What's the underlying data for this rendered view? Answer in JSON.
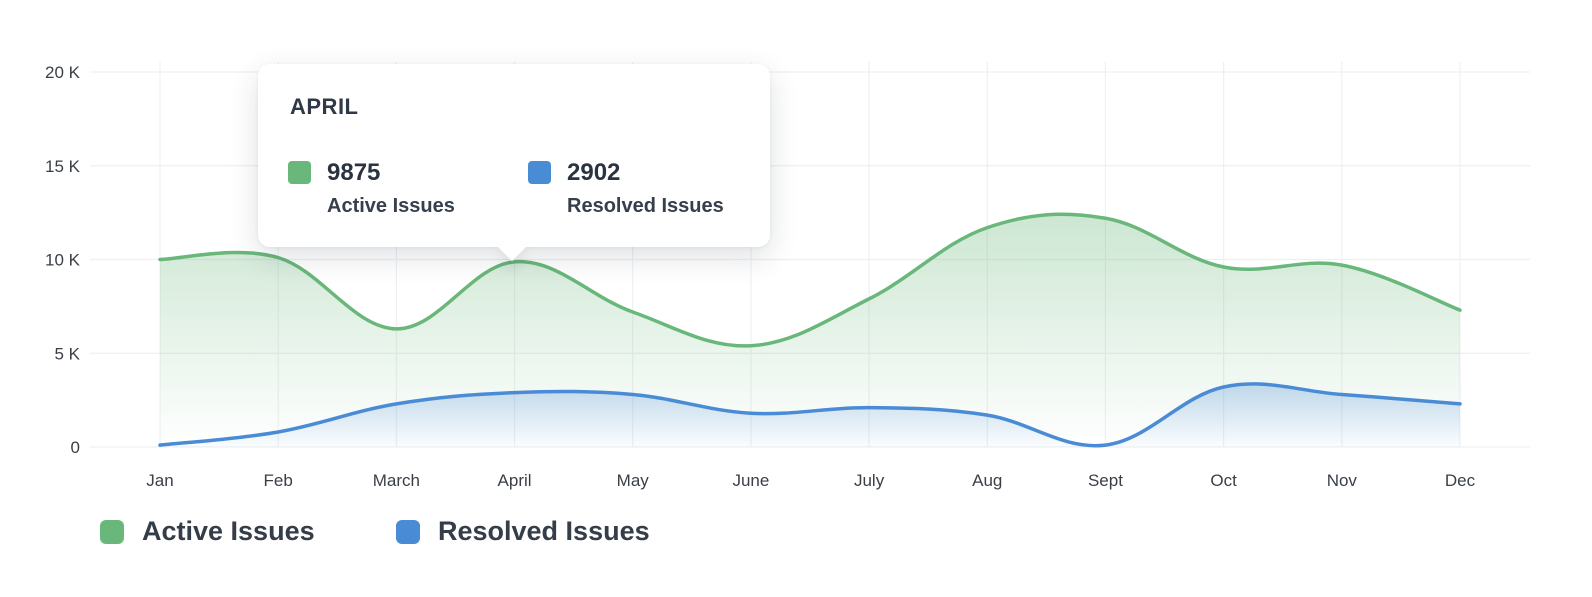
{
  "chart_data": {
    "type": "area",
    "categories": [
      "Jan",
      "Feb",
      "March",
      "April",
      "May",
      "June",
      "July",
      "Aug",
      "Sept",
      "Oct",
      "Nov",
      "Dec"
    ],
    "y_ticks": [
      "0",
      "5 K",
      "10 K",
      "15 K",
      "20 K"
    ],
    "ylim": [
      0,
      20000
    ],
    "grid": true,
    "series": [
      {
        "name": "Active Issues",
        "color": "#69b77a",
        "values": [
          10000,
          10100,
          6300,
          9875,
          7200,
          5400,
          7900,
          11700,
          12200,
          9600,
          9700,
          7300
        ]
      },
      {
        "name": "Resolved Issues",
        "color": "#4a8bd6",
        "values": [
          100,
          800,
          2300,
          2902,
          2800,
          1800,
          2100,
          1700,
          100,
          3200,
          2800,
          2300
        ]
      }
    ],
    "legend_position": "bottom-left"
  },
  "tooltip": {
    "title": "APRIL",
    "items": [
      {
        "value": "9875",
        "label": "Active Issues",
        "color": "#69b77a"
      },
      {
        "value": "2902",
        "label": "Resolved Issues",
        "color": "#4a8bd6"
      }
    ]
  },
  "legend": {
    "items": [
      {
        "label": "Active Issues",
        "color": "#69b77a"
      },
      {
        "label": "Resolved Issues",
        "color": "#4a8bd6"
      }
    ]
  }
}
